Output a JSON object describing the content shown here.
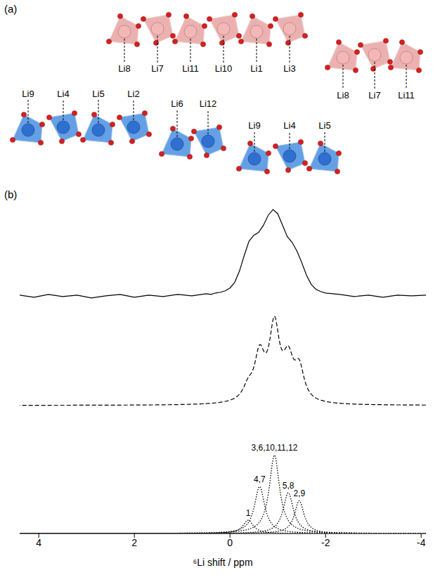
{
  "diagram": {
    "label": "(a)",
    "groups": [
      {
        "color": "#e8a3a3",
        "sites": [
          "Li8",
          "Li7",
          "Li11",
          "Li10",
          "Li1",
          "Li3"
        ]
      },
      {
        "color": "#e8a3a3",
        "sites": [
          "Li8",
          "Li7",
          "Li11"
        ]
      },
      {
        "color": "#4a8fe0",
        "sites": [
          "Li9",
          "Li4",
          "Li5",
          "Li2"
        ]
      },
      {
        "color": "#4a8fe0",
        "sites": [
          "Li6",
          "Li12"
        ]
      },
      {
        "color": "#4a8fe0",
        "sites": [
          "Li9",
          "Li4",
          "Li5"
        ]
      }
    ]
  },
  "chart_data": {
    "type": "line",
    "title": "(b)",
    "x_label": "⁶Li shift / ppm",
    "xlim": [
      4.4,
      -4.1
    ],
    "xticks": [
      4,
      2,
      0,
      -2,
      -4
    ],
    "tick_labels": "x",
    "color": "#000000",
    "experimental": {
      "line_style": "solid",
      "ylim": [
        -0.1,
        1.3
      ],
      "x": [
        4.4,
        4.1,
        3.8,
        3.5,
        3.2,
        2.9,
        2.6,
        2.3,
        2.0,
        1.7,
        1.4,
        1.1,
        0.8,
        0.6,
        0.5,
        0.4,
        0.3,
        0.2,
        0.1,
        0.0,
        -0.1,
        -0.2,
        -0.3,
        -0.4,
        -0.5,
        -0.6,
        -0.7,
        -0.8,
        -0.9,
        -1.0,
        -1.1,
        -1.2,
        -1.3,
        -1.4,
        -1.5,
        -1.6,
        -1.7,
        -1.8,
        -1.9,
        -2.0,
        -2.3,
        -2.6,
        -2.9,
        -3.2,
        -3.5,
        -3.8,
        -4.1
      ],
      "values": [
        0.02,
        -0.01,
        0.03,
        0.0,
        0.02,
        -0.02,
        0.01,
        0.03,
        -0.01,
        0.02,
        0.0,
        0.03,
        0.01,
        0.03,
        0.04,
        0.03,
        0.05,
        0.06,
        0.08,
        0.12,
        0.2,
        0.36,
        0.58,
        0.78,
        0.86,
        0.9,
        1.0,
        1.14,
        1.22,
        1.16,
        1.0,
        0.84,
        0.76,
        0.64,
        0.48,
        0.3,
        0.17,
        0.1,
        0.07,
        0.05,
        0.03,
        0.0,
        0.02,
        -0.01,
        0.02,
        0.01,
        0.02
      ]
    },
    "simulated": {
      "line_style": "dashed",
      "ylim": [
        -0.05,
        1.3
      ]
    },
    "components": {
      "line_style": "dotted",
      "ylim": [
        0,
        1.3
      ],
      "peaks": [
        {
          "label": "1",
          "center": -0.38,
          "height": 0.17,
          "width": 0.13
        },
        {
          "label": "4,7",
          "center": -0.62,
          "height": 0.6,
          "width": 0.13
        },
        {
          "label": "3,6,10,11,12",
          "center": -0.93,
          "height": 1.0,
          "width": 0.13
        },
        {
          "label": "5,8",
          "center": -1.22,
          "height": 0.52,
          "width": 0.13
        },
        {
          "label": "2,9",
          "center": -1.45,
          "height": 0.42,
          "width": 0.12
        }
      ]
    }
  }
}
